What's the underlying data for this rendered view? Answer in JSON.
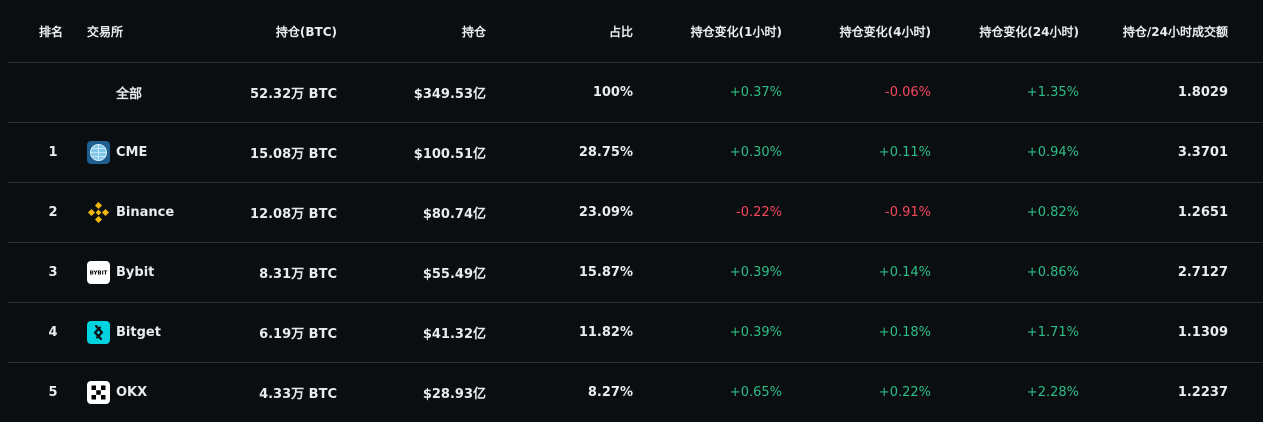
{
  "headers": {
    "rank": "排名",
    "exchange": "交易所",
    "oi_btc": "持仓(BTC)",
    "oi": "持仓",
    "share": "占比",
    "chg_1h": "持仓变化(1小时)",
    "chg_4h": "持仓变化(4小时)",
    "chg_24h": "持仓变化(24小时)",
    "oi_vol_ratio": "持仓/24小时成交额"
  },
  "total": {
    "label": "全部",
    "oi_btc": "52.32万 BTC",
    "oi": "$349.53亿",
    "share": "100%",
    "chg_1h": "+0.37%",
    "chg_4h": "-0.06%",
    "chg_24h": "+1.35%",
    "oi_vol_ratio": "1.8029"
  },
  "rows": [
    {
      "rank": "1",
      "name": "CME",
      "icon": "cme-logo-icon",
      "oi_btc": "15.08万 BTC",
      "oi": "$100.51亿",
      "share": "28.75%",
      "chg_1h": "+0.30%",
      "chg_4h": "+0.11%",
      "chg_24h": "+0.94%",
      "oi_vol_ratio": "3.3701"
    },
    {
      "rank": "2",
      "name": "Binance",
      "icon": "binance-logo-icon",
      "oi_btc": "12.08万 BTC",
      "oi": "$80.74亿",
      "share": "23.09%",
      "chg_1h": "-0.22%",
      "chg_4h": "-0.91%",
      "chg_24h": "+0.82%",
      "oi_vol_ratio": "1.2651"
    },
    {
      "rank": "3",
      "name": "Bybit",
      "icon": "bybit-logo-icon",
      "oi_btc": "8.31万 BTC",
      "oi": "$55.49亿",
      "share": "15.87%",
      "chg_1h": "+0.39%",
      "chg_4h": "+0.14%",
      "chg_24h": "+0.86%",
      "oi_vol_ratio": "2.7127"
    },
    {
      "rank": "4",
      "name": "Bitget",
      "icon": "bitget-logo-icon",
      "oi_btc": "6.19万 BTC",
      "oi": "$41.32亿",
      "share": "11.82%",
      "chg_1h": "+0.39%",
      "chg_4h": "+0.18%",
      "chg_24h": "+1.71%",
      "oi_vol_ratio": "1.1309"
    },
    {
      "rank": "5",
      "name": "OKX",
      "icon": "okx-logo-icon",
      "oi_btc": "4.33万 BTC",
      "oi": "$28.93亿",
      "share": "8.27%",
      "chg_1h": "+0.65%",
      "chg_4h": "+0.22%",
      "chg_24h": "+2.28%",
      "oi_vol_ratio": "1.2237"
    }
  ],
  "colors": {
    "positive": "#2ebd85",
    "negative": "#f6465d",
    "background": "#0b0e11",
    "divider": "#2b3139"
  },
  "logo_text": {
    "bybit": "BYBIT"
  }
}
